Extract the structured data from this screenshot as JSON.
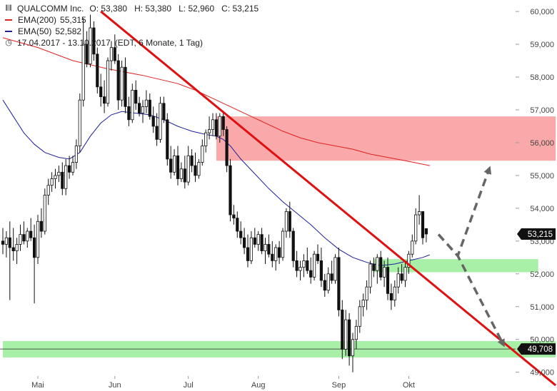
{
  "colors": {
    "ema200": "#e02020",
    "ema50": "#1f1f9a",
    "trendline": "#e01010",
    "resistance_zone": "#f9a9a9",
    "support_zone": "#a8f0a8",
    "candle": "#111111",
    "arrow": "#666666",
    "price_tag": "#111111"
  },
  "legend": {
    "instrument": "QUALCOMM Inc.",
    "ohlc": "O: 53,380   H: 53,380   L: 52,960   C: 53,215",
    "ema200_label": "EMA(200)",
    "ema200_value": "55,315",
    "ema50_label": "EMA(50)",
    "ema50_value": "52,582",
    "period": "17.04.2017 - 13.10.2017",
    "period_note": "(EDT, 6 Monate, 1 Tag)",
    "bars_icon": "bars-icon",
    "clock_icon": "clock-icon"
  },
  "chart_data": {
    "type": "candlestick",
    "ylim": [
      48.95,
      60.35
    ],
    "grid": false,
    "y_ticks": [
      {
        "value": 49,
        "label": "49,000"
      },
      {
        "value": 50,
        "label": "50,000"
      },
      {
        "value": 51,
        "label": "51,000"
      },
      {
        "value": 52,
        "label": "52,000"
      },
      {
        "value": 53,
        "label": "53,000"
      },
      {
        "value": 54,
        "label": "54,000"
      },
      {
        "value": 55,
        "label": "55,000"
      },
      {
        "value": 56,
        "label": "56,000"
      },
      {
        "value": 57,
        "label": "57,000"
      },
      {
        "value": 58,
        "label": "58,000"
      },
      {
        "value": 59,
        "label": "59,000"
      },
      {
        "value": 60,
        "label": "60,000"
      }
    ],
    "x_ticks": [
      {
        "index": 10,
        "label": "Mai"
      },
      {
        "index": 32,
        "label": "Jun"
      },
      {
        "index": 53,
        "label": "Jul"
      },
      {
        "index": 73,
        "label": "Aug"
      },
      {
        "index": 96,
        "label": "Sep"
      },
      {
        "index": 116,
        "label": "Okt"
      }
    ],
    "price_labels": [
      {
        "value": 53.215,
        "label": "53,215"
      },
      {
        "value": 49.708,
        "label": "49,708"
      }
    ],
    "horizontal_line": 49.708,
    "zones": [
      {
        "name": "resistance",
        "from_index": 61,
        "to_index": 158,
        "low": 55.45,
        "high": 56.8
      },
      {
        "name": "support-upper",
        "from_index": 106,
        "to_index": 153,
        "low": 52.05,
        "high": 52.45
      },
      {
        "name": "support-lower",
        "from_index": 0,
        "to_index": 158,
        "low": 49.45,
        "high": 49.95
      }
    ],
    "trendline": {
      "from": {
        "index": 28,
        "value": 60.0
      },
      "to": {
        "index": 158,
        "value": 48.6
      }
    },
    "arrows": [
      {
        "points": [
          [
            124.5,
            53.2
          ],
          [
            130,
            52.55
          ],
          [
            139,
            55.2
          ]
        ]
      },
      {
        "points": [
          [
            124.5,
            53.2
          ],
          [
            130,
            52.55
          ],
          [
            143,
            49.85
          ]
        ]
      }
    ],
    "candles": [
      {
        "o": 53.0,
        "h": 53.4,
        "l": 52.6,
        "c": 52.9
      },
      {
        "o": 52.9,
        "h": 53.3,
        "l": 52.5,
        "c": 53.1
      },
      {
        "o": 53.1,
        "h": 53.6,
        "l": 51.2,
        "c": 52.8
      },
      {
        "o": 52.8,
        "h": 53.4,
        "l": 52.4,
        "c": 52.7
      },
      {
        "o": 52.7,
        "h": 53.1,
        "l": 52.3,
        "c": 52.9
      },
      {
        "o": 52.9,
        "h": 53.5,
        "l": 52.7,
        "c": 53.2
      },
      {
        "o": 53.2,
        "h": 53.6,
        "l": 52.9,
        "c": 53.0
      },
      {
        "o": 53.0,
        "h": 53.4,
        "l": 52.8,
        "c": 53.3
      },
      {
        "o": 53.3,
        "h": 53.7,
        "l": 53.0,
        "c": 53.1
      },
      {
        "o": 53.1,
        "h": 53.5,
        "l": 51.1,
        "c": 52.5
      },
      {
        "o": 52.5,
        "h": 53.8,
        "l": 52.3,
        "c": 53.6
      },
      {
        "o": 53.6,
        "h": 54.0,
        "l": 53.1,
        "c": 53.3
      },
      {
        "o": 53.3,
        "h": 54.6,
        "l": 53.2,
        "c": 54.4
      },
      {
        "o": 54.4,
        "h": 54.9,
        "l": 54.1,
        "c": 54.7
      },
      {
        "o": 54.7,
        "h": 55.1,
        "l": 54.5,
        "c": 54.9
      },
      {
        "o": 54.9,
        "h": 55.2,
        "l": 54.6,
        "c": 55.0
      },
      {
        "o": 55.0,
        "h": 55.3,
        "l": 54.8,
        "c": 55.1
      },
      {
        "o": 55.1,
        "h": 55.4,
        "l": 54.4,
        "c": 54.6
      },
      {
        "o": 54.6,
        "h": 55.5,
        "l": 54.4,
        "c": 55.3
      },
      {
        "o": 55.3,
        "h": 55.6,
        "l": 54.9,
        "c": 55.1
      },
      {
        "o": 55.1,
        "h": 55.6,
        "l": 55.0,
        "c": 55.4
      },
      {
        "o": 55.4,
        "h": 56.1,
        "l": 55.2,
        "c": 55.9
      },
      {
        "o": 55.9,
        "h": 57.5,
        "l": 55.7,
        "c": 57.3
      },
      {
        "o": 57.3,
        "h": 59.8,
        "l": 57.1,
        "c": 59.0
      },
      {
        "o": 59.0,
        "h": 59.4,
        "l": 58.3,
        "c": 58.4
      },
      {
        "o": 58.4,
        "h": 59.9,
        "l": 58.3,
        "c": 59.5
      },
      {
        "o": 59.5,
        "h": 59.7,
        "l": 58.5,
        "c": 58.7
      },
      {
        "o": 58.7,
        "h": 58.9,
        "l": 57.5,
        "c": 57.7
      },
      {
        "o": 57.7,
        "h": 58.1,
        "l": 57.1,
        "c": 57.4
      },
      {
        "o": 57.4,
        "h": 57.9,
        "l": 56.9,
        "c": 57.2
      },
      {
        "o": 57.2,
        "h": 58.6,
        "l": 57.1,
        "c": 58.5
      },
      {
        "o": 58.5,
        "h": 59.1,
        "l": 58.2,
        "c": 58.9
      },
      {
        "o": 58.9,
        "h": 59.3,
        "l": 58.4,
        "c": 58.5
      },
      {
        "o": 58.5,
        "h": 58.7,
        "l": 57.0,
        "c": 57.3
      },
      {
        "o": 57.3,
        "h": 58.5,
        "l": 57.1,
        "c": 58.3
      },
      {
        "o": 58.3,
        "h": 58.6,
        "l": 56.9,
        "c": 57.1
      },
      {
        "o": 57.1,
        "h": 57.4,
        "l": 56.5,
        "c": 56.7
      },
      {
        "o": 56.7,
        "h": 57.8,
        "l": 56.6,
        "c": 57.6
      },
      {
        "o": 57.6,
        "h": 57.9,
        "l": 57.0,
        "c": 57.2
      },
      {
        "o": 57.2,
        "h": 57.4,
        "l": 56.8,
        "c": 56.9
      },
      {
        "o": 56.9,
        "h": 57.3,
        "l": 56.6,
        "c": 57.1
      },
      {
        "o": 57.1,
        "h": 57.6,
        "l": 56.9,
        "c": 57.3
      },
      {
        "o": 57.3,
        "h": 57.5,
        "l": 56.7,
        "c": 56.8
      },
      {
        "o": 56.8,
        "h": 57.1,
        "l": 56.3,
        "c": 56.5
      },
      {
        "o": 56.5,
        "h": 56.9,
        "l": 55.9,
        "c": 56.1
      },
      {
        "o": 56.1,
        "h": 57.4,
        "l": 56.0,
        "c": 57.2
      },
      {
        "o": 57.2,
        "h": 57.4,
        "l": 56.6,
        "c": 56.7
      },
      {
        "o": 56.7,
        "h": 56.9,
        "l": 55.3,
        "c": 55.5
      },
      {
        "o": 55.5,
        "h": 55.9,
        "l": 54.9,
        "c": 55.1
      },
      {
        "o": 55.1,
        "h": 55.8,
        "l": 55.0,
        "c": 55.6
      },
      {
        "o": 55.6,
        "h": 55.9,
        "l": 54.7,
        "c": 54.9
      },
      {
        "o": 54.9,
        "h": 55.4,
        "l": 54.8,
        "c": 55.2
      },
      {
        "o": 55.2,
        "h": 55.6,
        "l": 54.6,
        "c": 54.8
      },
      {
        "o": 54.8,
        "h": 55.9,
        "l": 54.7,
        "c": 55.6
      },
      {
        "o": 55.6,
        "h": 55.8,
        "l": 55.1,
        "c": 55.3
      },
      {
        "o": 55.3,
        "h": 55.7,
        "l": 54.8,
        "c": 55.0
      },
      {
        "o": 55.0,
        "h": 55.5,
        "l": 54.9,
        "c": 55.4
      },
      {
        "o": 55.4,
        "h": 56.1,
        "l": 55.3,
        "c": 55.9
      },
      {
        "o": 55.9,
        "h": 56.4,
        "l": 55.7,
        "c": 56.3
      },
      {
        "o": 56.3,
        "h": 56.8,
        "l": 56.1,
        "c": 56.4
      },
      {
        "o": 56.4,
        "h": 56.9,
        "l": 56.2,
        "c": 56.7
      },
      {
        "o": 56.7,
        "h": 56.9,
        "l": 56.1,
        "c": 56.2
      },
      {
        "o": 56.2,
        "h": 56.9,
        "l": 56.0,
        "c": 56.8
      },
      {
        "o": 56.8,
        "h": 56.9,
        "l": 56.2,
        "c": 56.4
      },
      {
        "o": 56.4,
        "h": 56.5,
        "l": 55.1,
        "c": 55.3
      },
      {
        "o": 55.3,
        "h": 55.5,
        "l": 53.6,
        "c": 53.8
      },
      {
        "o": 53.8,
        "h": 54.1,
        "l": 53.5,
        "c": 53.7
      },
      {
        "o": 53.7,
        "h": 53.9,
        "l": 53.1,
        "c": 53.3
      },
      {
        "o": 53.3,
        "h": 53.6,
        "l": 52.9,
        "c": 53.1
      },
      {
        "o": 53.1,
        "h": 53.4,
        "l": 52.6,
        "c": 52.8
      },
      {
        "o": 52.8,
        "h": 53.2,
        "l": 52.2,
        "c": 52.4
      },
      {
        "o": 52.4,
        "h": 53.3,
        "l": 52.3,
        "c": 53.1
      },
      {
        "o": 53.1,
        "h": 53.4,
        "l": 52.8,
        "c": 52.9
      },
      {
        "o": 52.9,
        "h": 53.3,
        "l": 52.7,
        "c": 53.2
      },
      {
        "o": 53.2,
        "h": 53.4,
        "l": 52.6,
        "c": 52.7
      },
      {
        "o": 52.7,
        "h": 53.1,
        "l": 52.3,
        "c": 52.9
      },
      {
        "o": 52.9,
        "h": 53.2,
        "l": 52.5,
        "c": 52.6
      },
      {
        "o": 52.6,
        "h": 53.0,
        "l": 52.2,
        "c": 52.4
      },
      {
        "o": 52.4,
        "h": 52.9,
        "l": 52.1,
        "c": 52.8
      },
      {
        "o": 52.8,
        "h": 53.0,
        "l": 52.3,
        "c": 52.5
      },
      {
        "o": 52.5,
        "h": 53.4,
        "l": 52.4,
        "c": 53.3
      },
      {
        "o": 53.3,
        "h": 54.0,
        "l": 53.1,
        "c": 53.9
      },
      {
        "o": 53.9,
        "h": 54.2,
        "l": 53.1,
        "c": 53.3
      },
      {
        "o": 53.3,
        "h": 53.4,
        "l": 52.2,
        "c": 52.4
      },
      {
        "o": 52.4,
        "h": 52.7,
        "l": 51.9,
        "c": 52.1
      },
      {
        "o": 52.1,
        "h": 52.4,
        "l": 51.8,
        "c": 52.2
      },
      {
        "o": 52.2,
        "h": 52.6,
        "l": 51.9,
        "c": 52.4
      },
      {
        "o": 52.4,
        "h": 52.8,
        "l": 52.0,
        "c": 52.1
      },
      {
        "o": 52.1,
        "h": 52.5,
        "l": 51.7,
        "c": 51.9
      },
      {
        "o": 51.9,
        "h": 52.7,
        "l": 51.8,
        "c": 52.6
      },
      {
        "o": 52.6,
        "h": 52.9,
        "l": 52.3,
        "c": 52.4
      },
      {
        "o": 52.4,
        "h": 52.8,
        "l": 51.6,
        "c": 51.8
      },
      {
        "o": 51.8,
        "h": 52.0,
        "l": 51.3,
        "c": 51.5
      },
      {
        "o": 51.5,
        "h": 52.2,
        "l": 51.4,
        "c": 52.0
      },
      {
        "o": 52.0,
        "h": 52.4,
        "l": 51.7,
        "c": 51.8
      },
      {
        "o": 51.8,
        "h": 52.6,
        "l": 51.7,
        "c": 52.5
      },
      {
        "o": 52.5,
        "h": 52.8,
        "l": 50.7,
        "c": 50.9
      },
      {
        "o": 50.9,
        "h": 51.2,
        "l": 49.4,
        "c": 49.7
      },
      {
        "o": 49.7,
        "h": 50.9,
        "l": 49.5,
        "c": 50.6
      },
      {
        "o": 50.6,
        "h": 50.8,
        "l": 49.2,
        "c": 49.5
      },
      {
        "o": 49.5,
        "h": 50.2,
        "l": 49.0,
        "c": 50.0
      },
      {
        "o": 50.0,
        "h": 50.6,
        "l": 49.7,
        "c": 50.4
      },
      {
        "o": 50.4,
        "h": 51.2,
        "l": 50.2,
        "c": 51.0
      },
      {
        "o": 51.0,
        "h": 51.4,
        "l": 50.7,
        "c": 51.2
      },
      {
        "o": 51.2,
        "h": 51.8,
        "l": 50.9,
        "c": 51.6
      },
      {
        "o": 51.6,
        "h": 52.4,
        "l": 51.4,
        "c": 52.3
      },
      {
        "o": 52.3,
        "h": 52.5,
        "l": 51.9,
        "c": 52.1
      },
      {
        "o": 52.1,
        "h": 52.6,
        "l": 51.7,
        "c": 52.5
      },
      {
        "o": 52.5,
        "h": 52.7,
        "l": 51.8,
        "c": 51.9
      },
      {
        "o": 51.9,
        "h": 52.4,
        "l": 51.6,
        "c": 52.2
      },
      {
        "o": 52.2,
        "h": 52.5,
        "l": 51.2,
        "c": 51.4
      },
      {
        "o": 51.4,
        "h": 51.7,
        "l": 50.9,
        "c": 51.2
      },
      {
        "o": 51.2,
        "h": 51.8,
        "l": 51.0,
        "c": 51.6
      },
      {
        "o": 51.6,
        "h": 52.2,
        "l": 51.4,
        "c": 52.0
      },
      {
        "o": 52.0,
        "h": 52.3,
        "l": 51.7,
        "c": 51.8
      },
      {
        "o": 51.8,
        "h": 52.4,
        "l": 51.6,
        "c": 52.2
      },
      {
        "o": 52.2,
        "h": 52.7,
        "l": 52.0,
        "c": 52.6
      },
      {
        "o": 52.6,
        "h": 53.2,
        "l": 52.5,
        "c": 53.0
      },
      {
        "o": 53.0,
        "h": 54.0,
        "l": 52.9,
        "c": 53.8
      },
      {
        "o": 53.8,
        "h": 54.4,
        "l": 53.5,
        "c": 53.9
      },
      {
        "o": 53.9,
        "h": 53.9,
        "l": 52.9,
        "c": 53.1
      },
      {
        "o": 53.38,
        "h": 53.38,
        "l": 52.96,
        "c": 53.215
      }
    ],
    "ema200": [
      [
        0,
        59.2
      ],
      [
        10,
        58.9
      ],
      [
        20,
        58.5
      ],
      [
        30,
        58.25
      ],
      [
        40,
        58.05
      ],
      [
        50,
        57.8
      ],
      [
        55,
        57.6
      ],
      [
        60,
        57.35
      ],
      [
        65,
        57.1
      ],
      [
        70,
        56.85
      ],
      [
        75,
        56.6
      ],
      [
        80,
        56.35
      ],
      [
        85,
        56.15
      ],
      [
        90,
        56.0
      ],
      [
        95,
        55.9
      ],
      [
        100,
        55.8
      ],
      [
        105,
        55.65
      ],
      [
        110,
        55.55
      ],
      [
        115,
        55.45
      ],
      [
        122,
        55.3
      ]
    ],
    "ema50": [
      [
        0,
        57.3
      ],
      [
        3,
        56.8
      ],
      [
        6,
        56.3
      ],
      [
        9,
        55.95
      ],
      [
        12,
        55.7
      ],
      [
        16,
        55.55
      ],
      [
        19,
        55.5
      ],
      [
        22,
        55.7
      ],
      [
        25,
        56.2
      ],
      [
        28,
        56.6
      ],
      [
        31,
        56.85
      ],
      [
        34,
        56.95
      ],
      [
        38,
        56.9
      ],
      [
        42,
        56.85
      ],
      [
        46,
        56.7
      ],
      [
        50,
        56.5
      ],
      [
        54,
        56.35
      ],
      [
        58,
        56.25
      ],
      [
        61,
        56.2
      ],
      [
        63,
        56.1
      ],
      [
        65,
        55.9
      ],
      [
        68,
        55.5
      ],
      [
        72,
        55.05
      ],
      [
        76,
        54.6
      ],
      [
        80,
        54.2
      ],
      [
        84,
        53.85
      ],
      [
        88,
        53.5
      ],
      [
        92,
        53.1
      ],
      [
        96,
        52.75
      ],
      [
        100,
        52.5
      ],
      [
        104,
        52.35
      ],
      [
        108,
        52.25
      ],
      [
        112,
        52.3
      ],
      [
        116,
        52.4
      ],
      [
        120,
        52.5
      ],
      [
        122,
        52.58
      ]
    ]
  }
}
